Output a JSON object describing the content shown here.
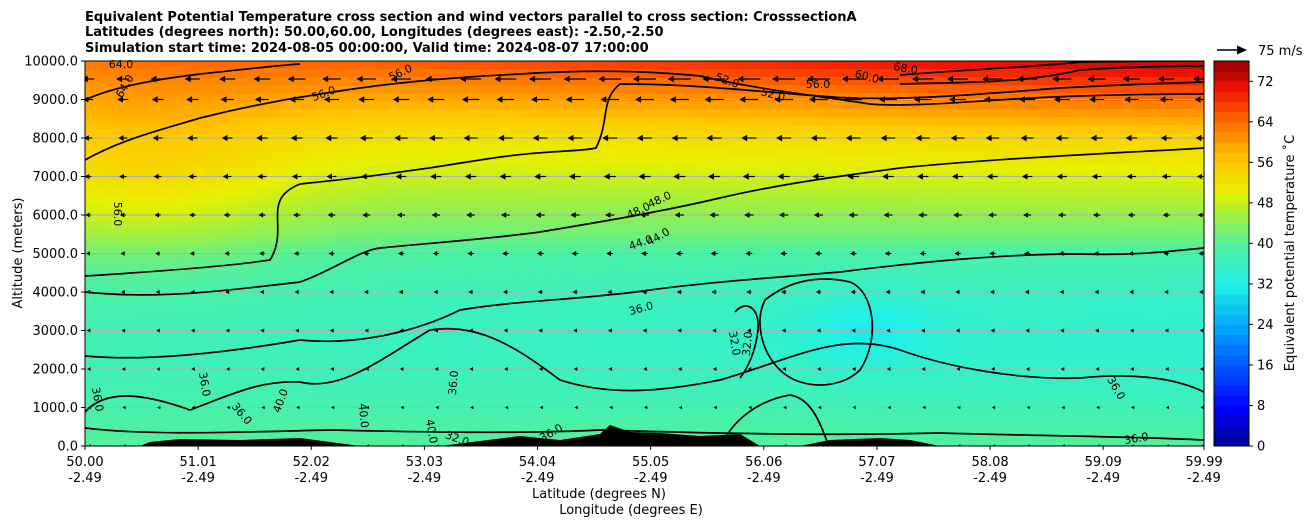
{
  "chart_data": {
    "type": "heatmap",
    "title_lines": [
      "Equivalent Potential Temperature cross section and wind vectors parallel to cross section: CrosssectionA",
      "Latitudes (degrees north): 50.00,60.00, Longitudes (degrees east): -2.50,-2.50",
      "Simulation start time: 2024-08-05 00:00:00, Valid time: 2024-08-07 17:00:00"
    ],
    "ylabel": "Altitude (meters)",
    "xlabel_lat": "Latitude (degrees N)",
    "xlabel_lon": "Longitude (degrees E)",
    "ylim": [
      0,
      10000
    ],
    "xlim": [
      50.0,
      59.99
    ],
    "y_ticks": [
      "0.0",
      "1000.0",
      "2000.0",
      "3000.0",
      "4000.0",
      "5000.0",
      "6000.0",
      "7000.0",
      "8000.0",
      "9000.0",
      "10000.0"
    ],
    "x_ticks_lat": [
      "50.00",
      "51.01",
      "52.02",
      "53.03",
      "54.04",
      "55.05",
      "56.06",
      "57.07",
      "58.08",
      "59.09",
      "59.99"
    ],
    "x_ticks_lon": [
      "-2.49",
      "-2.49",
      "-2.49",
      "-2.49",
      "-2.49",
      "-2.49",
      "-2.49",
      "-2.49",
      "-2.49",
      "-2.49",
      "-2.49"
    ],
    "colorbar": {
      "label": "Equivalent potential temperature $^\\circ$C",
      "label_text": "Equivalent potential temperature ˚C",
      "min": 0,
      "max": 76,
      "ticks": [
        "0",
        "8",
        "16",
        "24",
        "32",
        "40",
        "48",
        "56",
        "64",
        "72"
      ]
    },
    "quiver_key": {
      "label": "75 m/s"
    },
    "contour_labels": [
      "64.0",
      "64.0",
      "56.0",
      "56.0",
      "52.0",
      "52.0",
      "56.0",
      "60.0",
      "68.0",
      "56.0",
      "48.0",
      "48.0",
      "44.0",
      "44.0",
      "36.0",
      "32.0",
      "32.0",
      "36.0",
      "36.0",
      "36.0",
      "36.0",
      "36.0",
      "40.0",
      "36.0",
      "40.0",
      "40.0",
      "32.0",
      "36.0"
    ],
    "field_summary": {
      "surface_theta_e": 40,
      "top_north_theta_e": 72,
      "top_south_theta_e": 60,
      "min_midlevel_theta_e": 31
    }
  },
  "colors": {
    "contour": "#000000",
    "terrain": "#000000",
    "grid": "#b0b0b0",
    "background": "#ffffff"
  }
}
